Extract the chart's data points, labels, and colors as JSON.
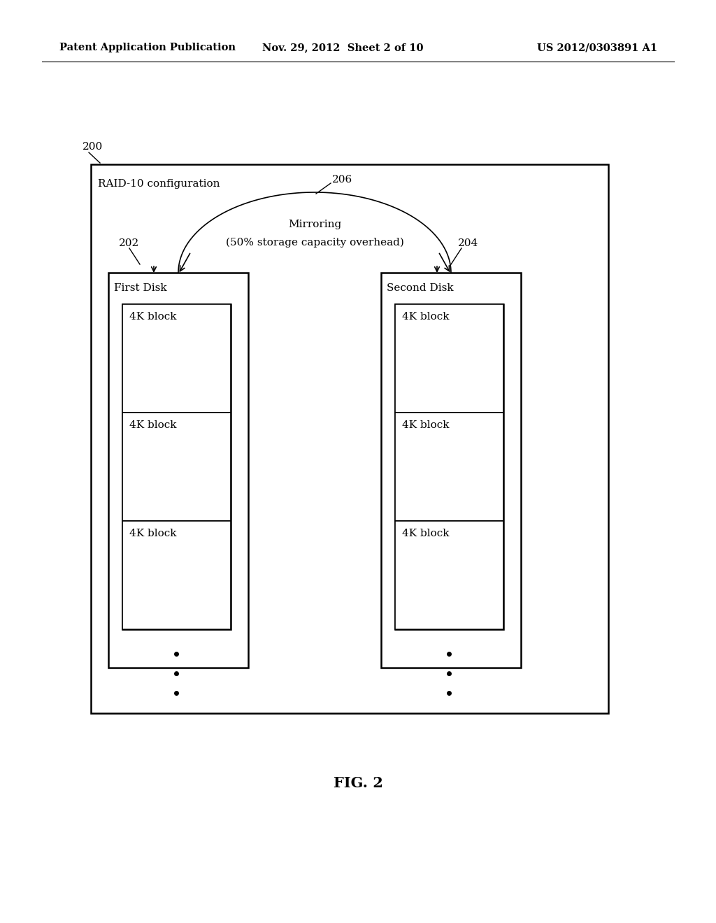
{
  "bg_color": "#ffffff",
  "header_left": "Patent Application Publication",
  "header_mid": "Nov. 29, 2012  Sheet 2 of 10",
  "header_right": "US 2012/0303891 A1",
  "fig_label": "FIG. 2",
  "diagram_label": "200",
  "config_label": "RAID-10 configuration",
  "mirroring_label": "206",
  "mirroring_text_line1": "Mirroring",
  "mirroring_text_line2": "(50% storage capacity overhead)",
  "first_disk_label": "202",
  "first_disk_title": "First Disk",
  "second_disk_label": "204",
  "second_disk_title": "Second Disk",
  "block_label": "4K block"
}
